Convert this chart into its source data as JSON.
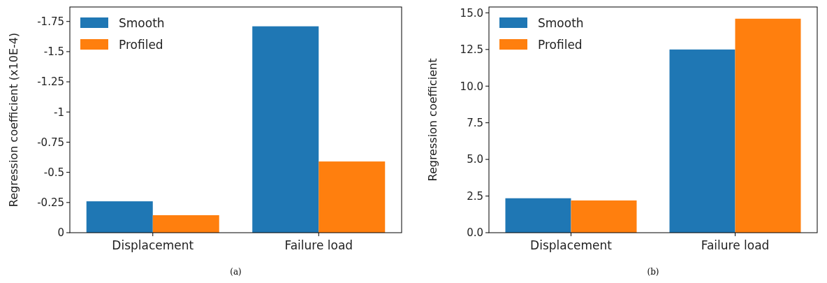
{
  "chart_data": [
    {
      "type": "bar",
      "ylabel": "Regression coefficient (x10E-4)",
      "categories": [
        "Displacement",
        "Failure load"
      ],
      "series": [
        {
          "name": "Smooth",
          "color": "#1f77b4",
          "values": [
            -0.26,
            -1.71
          ]
        },
        {
          "name": "Profiled",
          "color": "#ff7f0e",
          "values": [
            -0.145,
            -0.59
          ]
        }
      ],
      "ylim": [
        0,
        -1.87
      ],
      "yticks": [
        0,
        -0.25,
        -0.5,
        -0.75,
        -1,
        -1.25,
        -1.5,
        -1.75
      ],
      "legend": "top left",
      "annotations": [
        "(a)"
      ]
    },
    {
      "type": "bar",
      "ylabel": "Regression coefficient",
      "categories": [
        "Displacement",
        "Failure load"
      ],
      "series": [
        {
          "name": "Smooth",
          "color": "#1f77b4",
          "values": [
            2.35,
            12.5
          ]
        },
        {
          "name": "Profiled",
          "color": "#ff7f0e",
          "values": [
            2.2,
            14.6
          ]
        }
      ],
      "ylim": [
        0,
        15.4
      ],
      "yticks": [
        {
          "value": 0,
          "label": "0.0"
        },
        {
          "value": 2.5,
          "label": "2.5"
        },
        {
          "value": 5,
          "label": "5.0"
        },
        {
          "value": 7.5,
          "label": "7.5"
        },
        {
          "value": 10,
          "label": "10.0"
        },
        {
          "value": 12.5,
          "label": "12.5"
        },
        {
          "value": 15,
          "label": "15.0"
        }
      ],
      "legend": "top left",
      "annotations": [
        "(b)"
      ]
    }
  ]
}
